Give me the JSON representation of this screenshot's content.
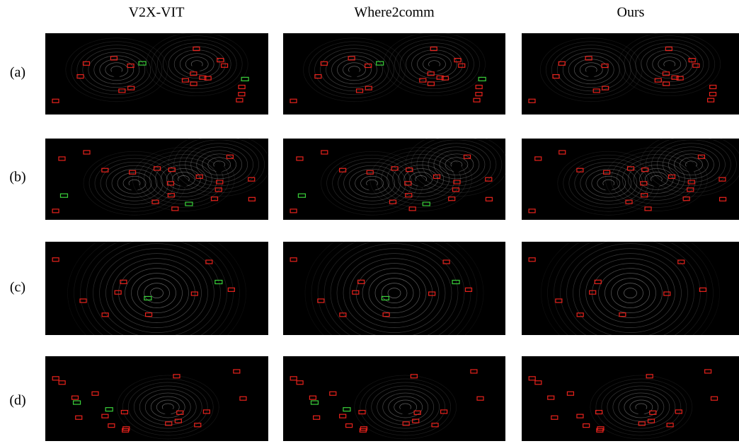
{
  "columns": [
    "V2X-VIT",
    "Where2comm",
    "Ours"
  ],
  "rows": [
    "(a)",
    "(b)",
    "(c)",
    "(d)"
  ]
}
